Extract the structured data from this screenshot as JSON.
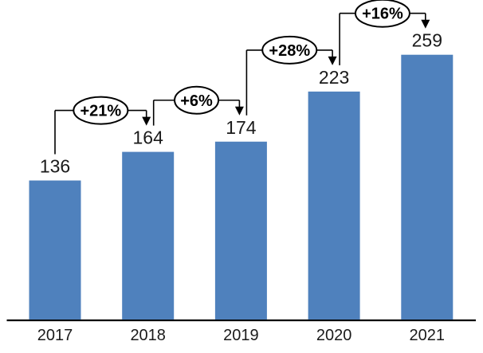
{
  "chart_data": {
    "type": "bar",
    "title": "",
    "categories": [
      "2017",
      "2018",
      "2019",
      "2020",
      "2021"
    ],
    "values": [
      136,
      164,
      174,
      223,
      259
    ],
    "data_labels": [
      "136",
      "164",
      "174",
      "223",
      "259"
    ],
    "annotations": [
      {
        "label": "+21%",
        "from": "2017",
        "to": "2018"
      },
      {
        "label": "+6%",
        "from": "2018",
        "to": "2019"
      },
      {
        "label": "+28%",
        "from": "2019",
        "to": "2020"
      },
      {
        "label": "+16%",
        "from": "2020",
        "to": "2021"
      }
    ],
    "xlabel": "",
    "ylabel": "",
    "y_axis_visible": false,
    "grid": false,
    "legend": false,
    "colors": {
      "bar": "#4F81BD",
      "axis": "#000000",
      "text": "#1a1a1a",
      "annotation_line": "#000000",
      "annotation_text": "#000000",
      "annotation_fill": "#ffffff",
      "background": "#ffffff"
    }
  }
}
